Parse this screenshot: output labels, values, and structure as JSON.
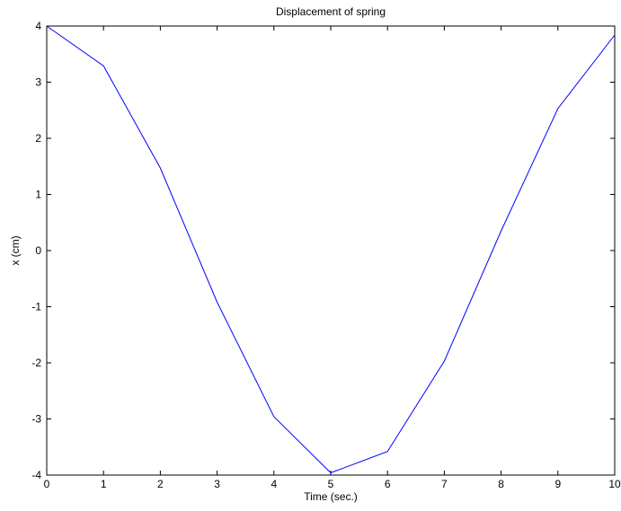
{
  "chart_data": {
    "type": "line",
    "title": "Displacement of spring",
    "xlabel": "Time (sec.)",
    "ylabel": "x (cm)",
    "xlim": [
      0,
      10
    ],
    "ylim": [
      -4,
      4
    ],
    "x_ticks": [
      "0",
      "1",
      "2",
      "3",
      "4",
      "5",
      "6",
      "7",
      "8",
      "9",
      "10"
    ],
    "y_ticks": [
      "-4",
      "-3",
      "-2",
      "-1",
      "0",
      "1",
      "2",
      "3",
      "4"
    ],
    "grid": false,
    "series": [
      {
        "color": "#0000ff",
        "x": [
          0,
          1,
          2,
          3,
          4,
          5,
          6,
          7,
          8,
          9,
          10
        ],
        "y": [
          4.0,
          3.29,
          1.47,
          -0.92,
          -2.96,
          -3.96,
          -3.58,
          -1.97,
          0.35,
          2.53,
          3.84
        ]
      }
    ]
  }
}
